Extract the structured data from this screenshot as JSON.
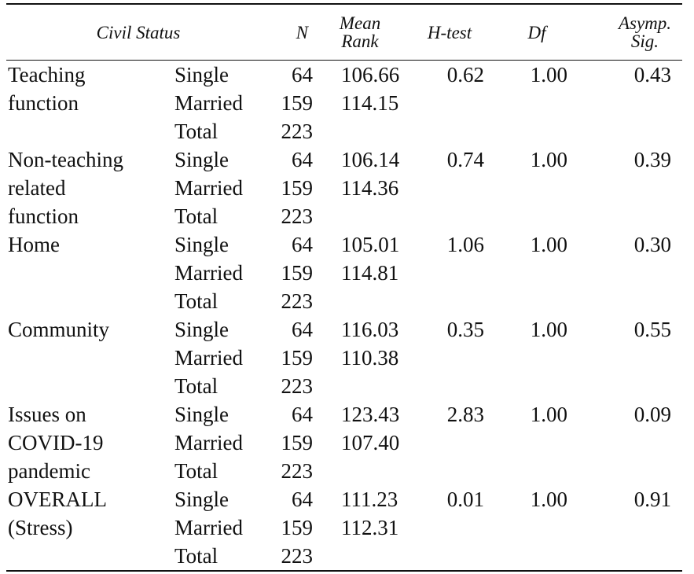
{
  "header": {
    "civil_status": "Civil Status",
    "n": "N",
    "mean_rank_1": "Mean",
    "mean_rank_2": "Rank",
    "h_test": "H-test",
    "df": "Df",
    "asymp_sig_1": "Asymp.",
    "asymp_sig_2": "Sig."
  },
  "groups": [
    {
      "variable_lines": [
        "Teaching",
        "function",
        ""
      ],
      "rows": [
        {
          "status": "Single",
          "n": "64",
          "mean_rank": "106.66",
          "h_test": "0.62",
          "df": "1.00",
          "sig": "0.43"
        },
        {
          "status": "Married",
          "n": "159",
          "mean_rank": "114.15",
          "h_test": "",
          "df": "",
          "sig": ""
        },
        {
          "status": "Total",
          "n": "223",
          "mean_rank": "",
          "h_test": "",
          "df": "",
          "sig": ""
        }
      ]
    },
    {
      "variable_lines": [
        "Non-teaching",
        "related",
        "function"
      ],
      "rows": [
        {
          "status": "Single",
          "n": "64",
          "mean_rank": "106.14",
          "h_test": "0.74",
          "df": "1.00",
          "sig": "0.39"
        },
        {
          "status": "Married",
          "n": "159",
          "mean_rank": "114.36",
          "h_test": "",
          "df": "",
          "sig": ""
        },
        {
          "status": "Total",
          "n": "223",
          "mean_rank": "",
          "h_test": "",
          "df": "",
          "sig": ""
        }
      ]
    },
    {
      "variable_lines": [
        "Home",
        "",
        ""
      ],
      "rows": [
        {
          "status": "Single",
          "n": "64",
          "mean_rank": "105.01",
          "h_test": "1.06",
          "df": "1.00",
          "sig": "0.30"
        },
        {
          "status": "Married",
          "n": "159",
          "mean_rank": "114.81",
          "h_test": "",
          "df": "",
          "sig": ""
        },
        {
          "status": "Total",
          "n": "223",
          "mean_rank": "",
          "h_test": "",
          "df": "",
          "sig": ""
        }
      ]
    },
    {
      "variable_lines": [
        "Community",
        "",
        ""
      ],
      "rows": [
        {
          "status": "Single",
          "n": "64",
          "mean_rank": "116.03",
          "h_test": "0.35",
          "df": "1.00",
          "sig": "0.55"
        },
        {
          "status": "Married",
          "n": "159",
          "mean_rank": "110.38",
          "h_test": "",
          "df": "",
          "sig": ""
        },
        {
          "status": "Total",
          "n": "223",
          "mean_rank": "",
          "h_test": "",
          "df": "",
          "sig": ""
        }
      ]
    },
    {
      "variable_lines": [
        "Issues on",
        "COVID-19",
        "pandemic"
      ],
      "rows": [
        {
          "status": "Single",
          "n": "64",
          "mean_rank": "123.43",
          "h_test": "2.83",
          "df": "1.00",
          "sig": "0.09"
        },
        {
          "status": "Married",
          "n": "159",
          "mean_rank": "107.40",
          "h_test": "",
          "df": "",
          "sig": ""
        },
        {
          "status": "Total",
          "n": "223",
          "mean_rank": "",
          "h_test": "",
          "df": "",
          "sig": ""
        }
      ]
    },
    {
      "variable_lines": [
        "OVERALL",
        "(Stress)",
        ""
      ],
      "rows": [
        {
          "status": "Single",
          "n": "64",
          "mean_rank": "111.23",
          "h_test": "0.01",
          "df": "1.00",
          "sig": "0.91"
        },
        {
          "status": "Married",
          "n": "159",
          "mean_rank": "112.31",
          "h_test": "",
          "df": "",
          "sig": ""
        },
        {
          "status": "Total",
          "n": "223",
          "mean_rank": "",
          "h_test": "",
          "df": "",
          "sig": ""
        }
      ]
    }
  ]
}
